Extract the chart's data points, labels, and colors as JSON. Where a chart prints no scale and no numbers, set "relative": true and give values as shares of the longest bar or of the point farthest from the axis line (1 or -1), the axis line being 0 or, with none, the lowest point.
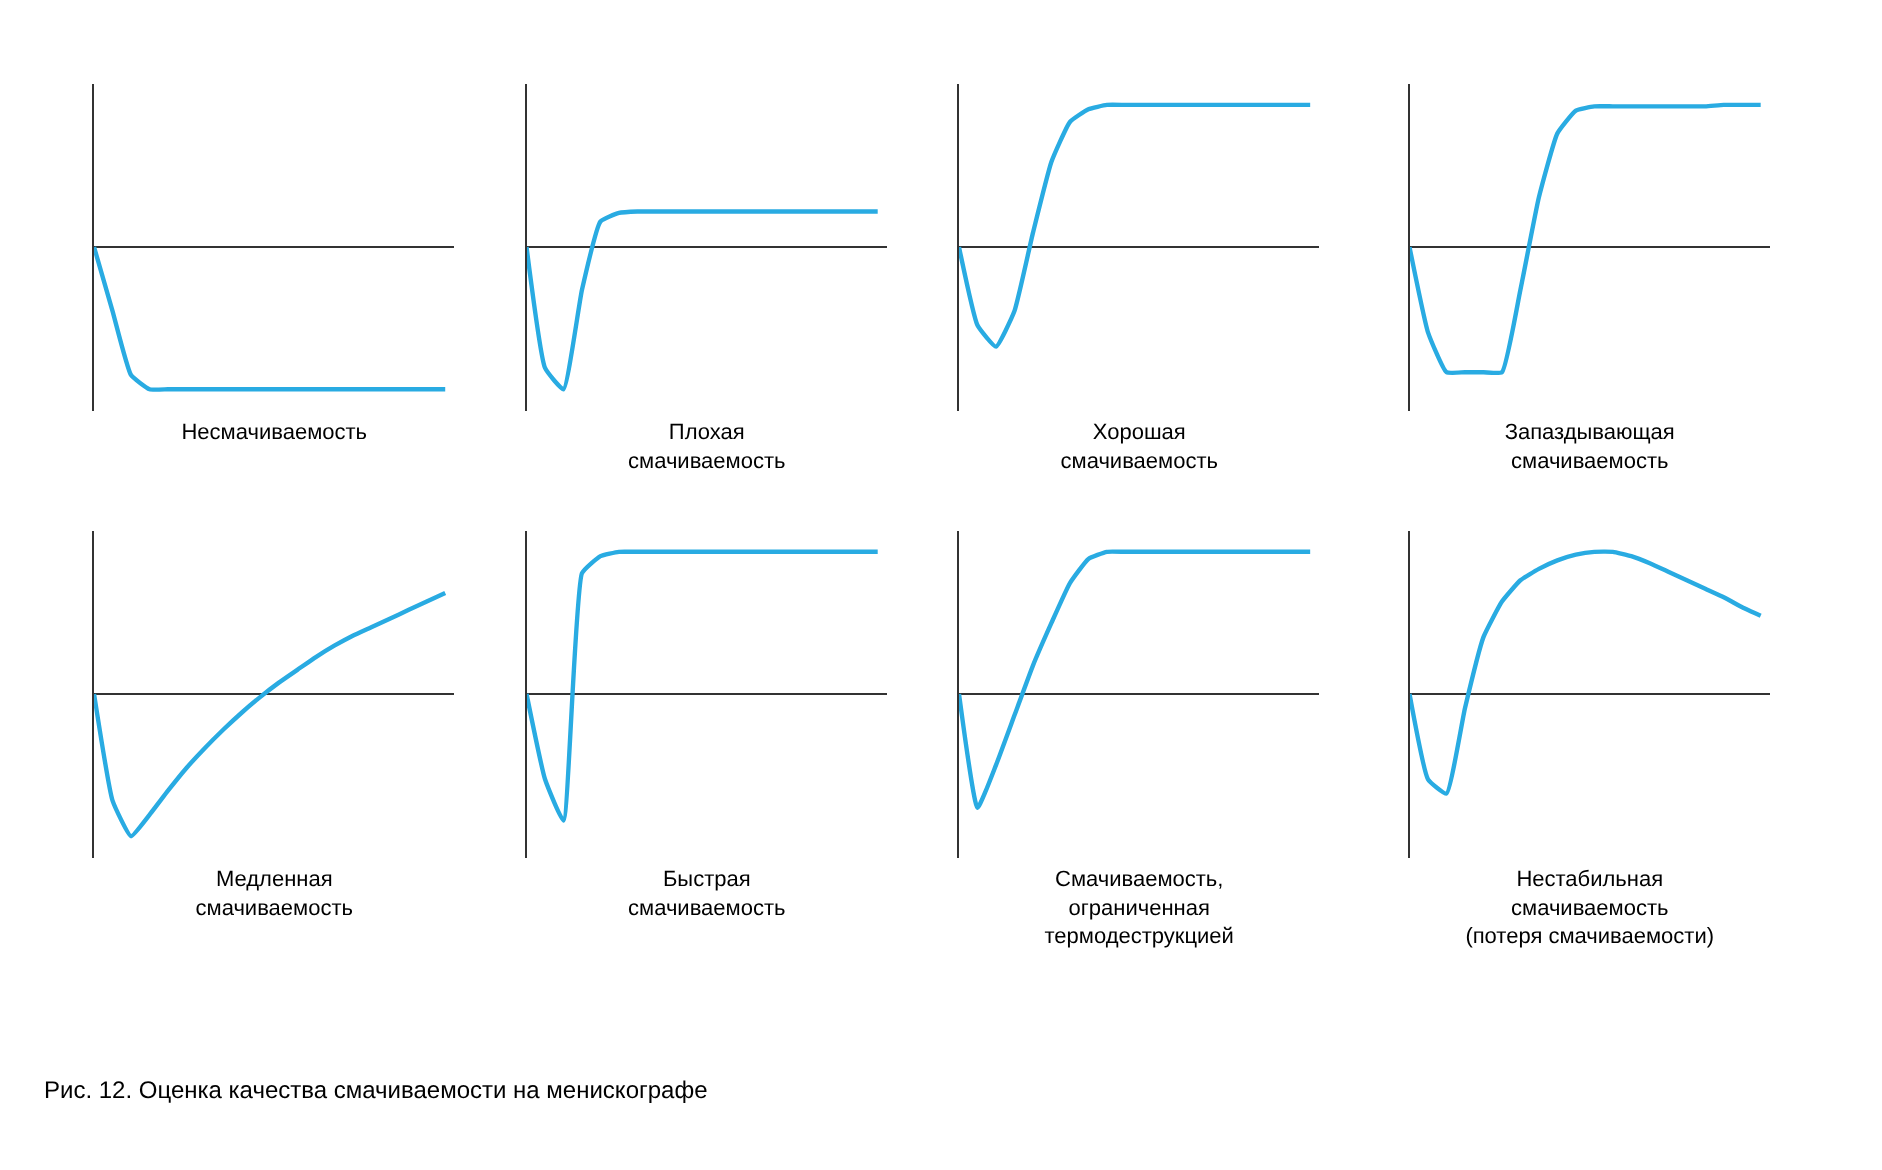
{
  "chart_data": [
    {
      "type": "line",
      "relative": true,
      "xlabel": "Несмачиваемость",
      "categories": [
        null,
        null,
        null,
        null,
        null,
        null,
        null,
        null,
        null,
        null,
        null,
        null,
        null,
        null,
        null,
        null,
        null,
        null,
        null,
        null
      ],
      "color": "#29abe2",
      "marker": "none",
      "values": [
        0,
        -0.45,
        -0.9,
        -1,
        -1,
        -1,
        -1,
        -1,
        -1,
        -1,
        -1,
        -1,
        -1,
        -1,
        -1,
        -1,
        -1,
        -1,
        -1,
        -1
      ]
    },
    {
      "type": "line",
      "relative": true,
      "xlabel": "Плохая\nсмачиваемость",
      "categories": [
        null,
        null,
        null,
        null,
        null,
        null,
        null,
        null,
        null,
        null,
        null,
        null,
        null,
        null,
        null,
        null,
        null,
        null,
        null,
        null
      ],
      "color": "#29abe2",
      "marker": "none",
      "values": [
        0,
        -0.85,
        -1,
        -0.3,
        0.18,
        0.24,
        0.25,
        0.25,
        0.25,
        0.25,
        0.25,
        0.25,
        0.25,
        0.25,
        0.25,
        0.25,
        0.25,
        0.25,
        0.25,
        0.25
      ]
    },
    {
      "type": "line",
      "relative": true,
      "xlabel": "Хорошая\nсмачиваемость",
      "categories": [
        null,
        null,
        null,
        null,
        null,
        null,
        null,
        null,
        null,
        null,
        null,
        null,
        null,
        null,
        null,
        null,
        null,
        null,
        null,
        null
      ],
      "color": "#29abe2",
      "marker": "none",
      "values": [
        0,
        -0.55,
        -0.7,
        -0.45,
        0.1,
        0.6,
        0.88,
        0.97,
        1,
        1,
        1,
        1,
        1,
        1,
        1,
        1,
        1,
        1,
        1,
        1
      ]
    },
    {
      "type": "line",
      "relative": true,
      "xlabel": "Запаздывающая\nсмачиваемость",
      "categories": [
        null,
        null,
        null,
        null,
        null,
        null,
        null,
        null,
        null,
        null,
        null,
        null,
        null,
        null,
        null,
        null,
        null,
        null,
        null,
        null
      ],
      "color": "#29abe2",
      "marker": "none",
      "values": [
        0,
        -0.6,
        -0.88,
        -0.88,
        -0.88,
        -0.88,
        -0.3,
        0.35,
        0.8,
        0.96,
        0.99,
        0.99,
        0.99,
        0.99,
        0.99,
        0.99,
        0.99,
        1,
        1,
        1
      ]
    },
    {
      "type": "line",
      "relative": true,
      "xlabel": "Медленная\nсмачиваемость",
      "categories": [
        null,
        null,
        null,
        null,
        null,
        null,
        null,
        null,
        null,
        null,
        null,
        null,
        null,
        null,
        null,
        null,
        null,
        null,
        null,
        null
      ],
      "color": "#29abe2",
      "marker": "none",
      "values": [
        0,
        -0.75,
        -1,
        -0.85,
        -0.68,
        -0.52,
        -0.38,
        -0.25,
        -0.13,
        -0.02,
        0.08,
        0.17,
        0.26,
        0.34,
        0.41,
        0.47,
        0.53,
        0.59,
        0.65,
        0.71
      ]
    },
    {
      "type": "line",
      "relative": true,
      "xlabel": "Быстрая\nсмачиваемость",
      "categories": [
        null,
        null,
        null,
        null,
        null,
        null,
        null,
        null,
        null,
        null,
        null,
        null,
        null,
        null,
        null,
        null,
        null,
        null,
        null,
        null
      ],
      "color": "#29abe2",
      "marker": "none",
      "values": [
        0,
        -0.6,
        -0.89,
        0.85,
        0.97,
        1,
        1,
        1,
        1,
        1,
        1,
        1,
        1,
        1,
        1,
        1,
        1,
        1,
        1,
        1
      ]
    },
    {
      "type": "line",
      "relative": true,
      "xlabel": "Смачиваемость,\nограниченная\nтермодеструкцией",
      "categories": [
        null,
        null,
        null,
        null,
        null,
        null,
        null,
        null,
        null,
        null,
        null,
        null,
        null,
        null,
        null,
        null,
        null,
        null,
        null,
        null
      ],
      "color": "#29abe2",
      "marker": "none",
      "values": [
        0,
        -0.8,
        -0.5,
        -0.15,
        0.2,
        0.5,
        0.78,
        0.95,
        1,
        1,
        1,
        1,
        1,
        1,
        1,
        1,
        1,
        1,
        1,
        1
      ]
    },
    {
      "type": "line",
      "relative": true,
      "xlabel": "Нестабильная\nсмачиваемость\n(потеря смачиваемости)",
      "categories": [
        null,
        null,
        null,
        null,
        null,
        null,
        null,
        null,
        null,
        null,
        null,
        null,
        null,
        null,
        null,
        null,
        null,
        null,
        null,
        null
      ],
      "color": "#29abe2",
      "marker": "none",
      "values": [
        0,
        -0.6,
        -0.7,
        -0.1,
        0.4,
        0.65,
        0.8,
        0.88,
        0.94,
        0.98,
        1,
        1,
        0.97,
        0.92,
        0.86,
        0.8,
        0.74,
        0.68,
        0.61,
        0.55
      ],
      "annotations": [
        "Рис. 12. Оценка качества смачиваемости на менискографе"
      ]
    }
  ]
}
